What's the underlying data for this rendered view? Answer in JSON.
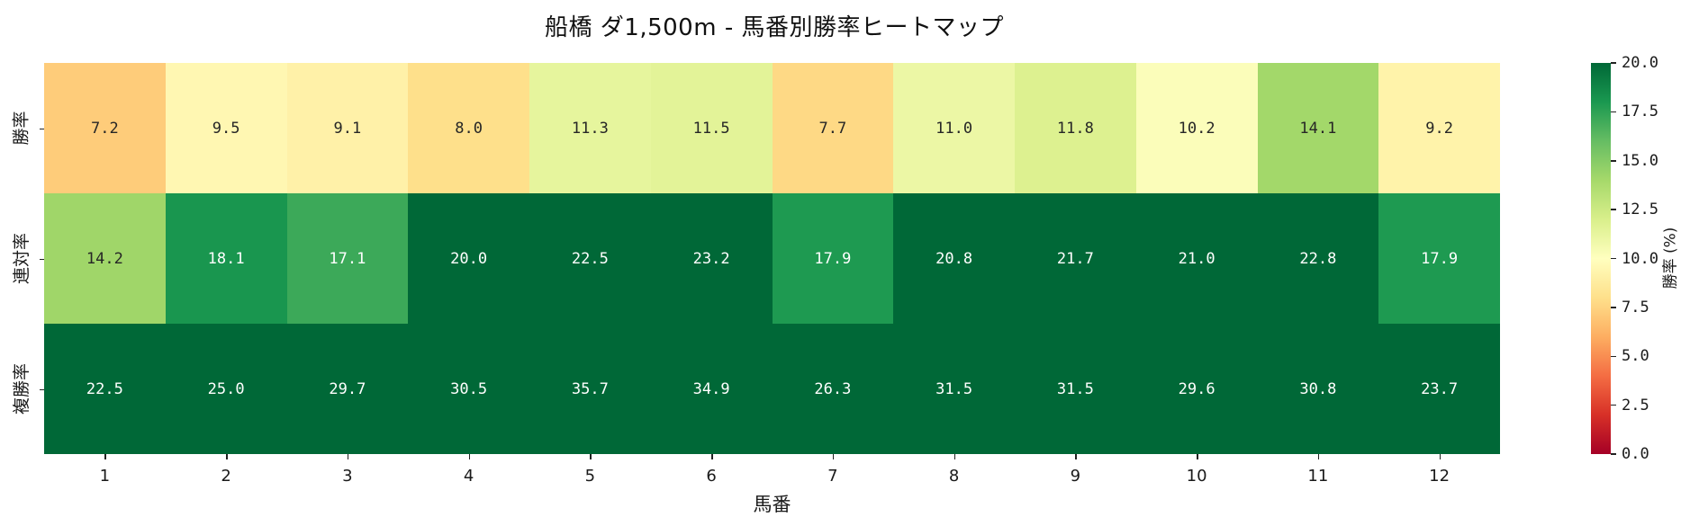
{
  "chart_data": {
    "type": "heatmap",
    "title": "船橋 ダ1,500m - 馬番別勝率ヒートマップ",
    "xlabel": "馬番",
    "ylabel": "",
    "categories": [
      "1",
      "2",
      "3",
      "4",
      "5",
      "6",
      "7",
      "8",
      "9",
      "10",
      "11",
      "12"
    ],
    "rows": [
      "勝率",
      "連対率",
      "複勝率"
    ],
    "series": [
      {
        "name": "勝率",
        "values": [
          7.2,
          9.5,
          9.1,
          8.0,
          11.3,
          11.5,
          7.7,
          11.0,
          11.8,
          10.2,
          14.1,
          9.2
        ]
      },
      {
        "name": "連対率",
        "values": [
          14.2,
          18.1,
          17.1,
          20.0,
          22.5,
          23.2,
          17.9,
          20.8,
          21.7,
          21.0,
          22.8,
          17.9
        ]
      },
      {
        "name": "複勝率",
        "values": [
          22.5,
          25.0,
          29.7,
          30.5,
          35.7,
          34.9,
          26.3,
          31.5,
          31.5,
          29.6,
          30.8,
          23.7
        ]
      }
    ],
    "colorbar": {
      "label": "勝率 (%)",
      "range": [
        0,
        20
      ],
      "ticks": [
        "0.0",
        "2.5",
        "5.0",
        "7.5",
        "10.0",
        "12.5",
        "15.0",
        "17.5",
        "20.0"
      ],
      "colormap": "RdYlGn"
    }
  },
  "title": "船橋 ダ1,500m - 馬番別勝率ヒートマップ",
  "xlabel": "馬番",
  "colorbar_label": "勝率 (%)"
}
